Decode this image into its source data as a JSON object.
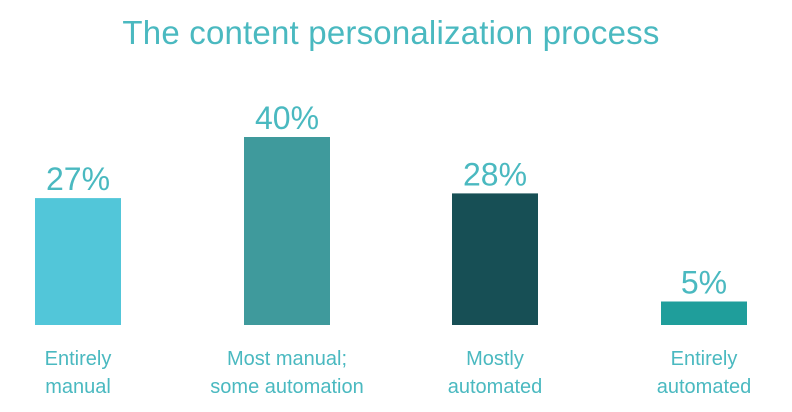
{
  "chart_data": {
    "type": "bar",
    "title": "The content personalization process",
    "categories": [
      [
        "Entirely",
        "manual"
      ],
      [
        "Most manual;",
        "some automation"
      ],
      [
        "Mostly",
        "automated"
      ],
      [
        "Entirely",
        "automated"
      ]
    ],
    "values": [
      27,
      40,
      28,
      5
    ],
    "value_labels": [
      "27%",
      "40%",
      "28%",
      "5%"
    ],
    "bar_colors": [
      "#52c6d9",
      "#3f9a9c",
      "#174f55",
      "#1f9e9b"
    ],
    "text_color": "#4ab9c0",
    "ylim": [
      0,
      40
    ],
    "grid": false,
    "legend": "none"
  }
}
